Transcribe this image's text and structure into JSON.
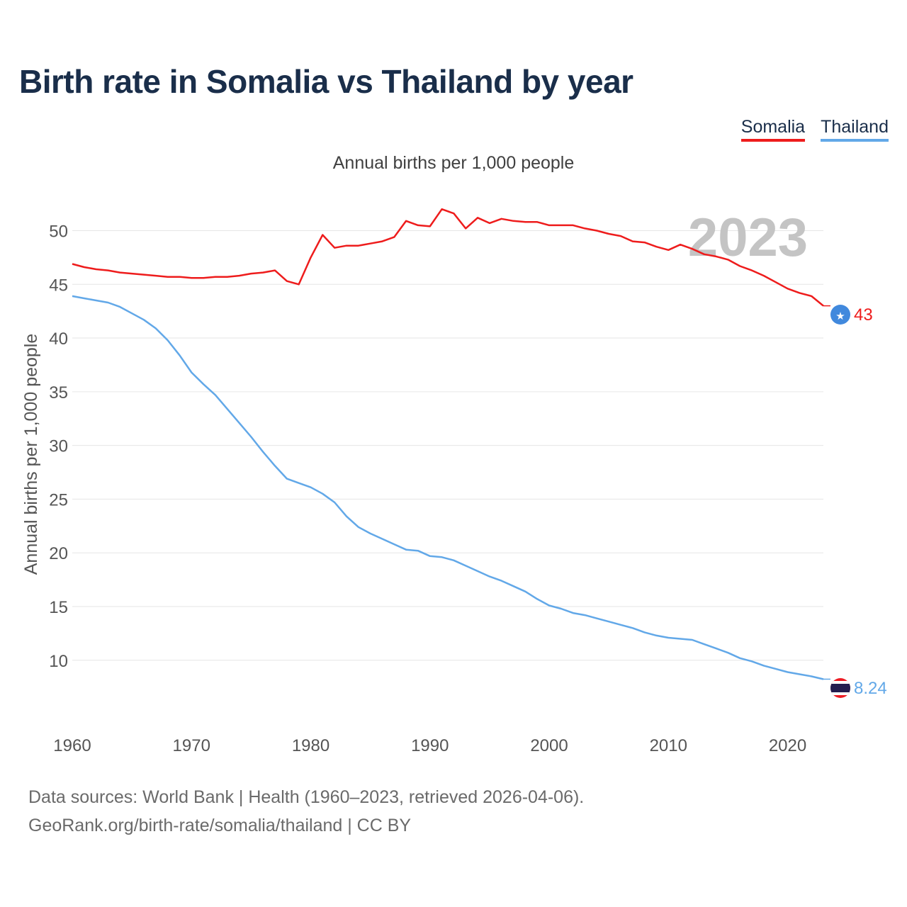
{
  "title": "Birth rate in Somalia vs Thailand by year",
  "legend": [
    {
      "name": "Somalia",
      "color": "#ee1c1c"
    },
    {
      "name": "Thailand",
      "color": "#62a8e8"
    }
  ],
  "subtitle": "Annual births per 1,000 people",
  "footer": {
    "line1": "Data sources: World Bank | Health (1960–2023, retrieved 2026-04-06).",
    "line2": "GeoRank.org/birth-rate/somalia/thailand | CC BY"
  },
  "chart_data": {
    "type": "line",
    "title": "Birth rate in Somalia vs Thailand by year",
    "ylabel": "Annual births per 1,000 people",
    "xlabel": "",
    "xlim": [
      1960,
      2023
    ],
    "ylim": [
      5.5,
      53
    ],
    "x_ticks": [
      1960,
      1970,
      1980,
      1990,
      2000,
      2010,
      2020
    ],
    "y_ticks": [
      10,
      15,
      20,
      25,
      30,
      35,
      40,
      45,
      50
    ],
    "grid": true,
    "year_watermark": "2023",
    "x": [
      1960,
      1961,
      1962,
      1963,
      1964,
      1965,
      1966,
      1967,
      1968,
      1969,
      1970,
      1971,
      1972,
      1973,
      1974,
      1975,
      1976,
      1977,
      1978,
      1979,
      1980,
      1981,
      1982,
      1983,
      1984,
      1985,
      1986,
      1987,
      1988,
      1989,
      1990,
      1991,
      1992,
      1993,
      1994,
      1995,
      1996,
      1997,
      1998,
      1999,
      2000,
      2001,
      2002,
      2003,
      2004,
      2005,
      2006,
      2007,
      2008,
      2009,
      2010,
      2011,
      2012,
      2013,
      2014,
      2015,
      2016,
      2017,
      2018,
      2019,
      2020,
      2021,
      2022,
      2023
    ],
    "series": [
      {
        "name": "Somalia",
        "color": "#ee1c1c",
        "end_label": "43",
        "values": [
          46.9,
          46.6,
          46.4,
          46.3,
          46.1,
          46.0,
          45.9,
          45.8,
          45.7,
          45.7,
          45.6,
          45.6,
          45.7,
          45.7,
          45.8,
          46.0,
          46.1,
          46.3,
          45.3,
          45.0,
          47.5,
          49.6,
          48.4,
          48.6,
          48.6,
          48.8,
          49.0,
          49.4,
          50.9,
          50.5,
          50.4,
          52.0,
          51.6,
          50.2,
          51.2,
          50.7,
          51.1,
          50.9,
          50.8,
          50.8,
          50.5,
          50.5,
          50.5,
          50.2,
          50.0,
          49.7,
          49.5,
          49.0,
          48.9,
          48.5,
          48.2,
          48.7,
          48.3,
          47.8,
          47.6,
          47.3,
          46.7,
          46.3,
          45.8,
          45.2,
          44.6,
          44.2,
          43.9,
          43.0
        ]
      },
      {
        "name": "Thailand",
        "color": "#62a8e8",
        "end_label": "8.24",
        "values": [
          43.9,
          43.7,
          43.5,
          43.3,
          42.9,
          42.3,
          41.7,
          40.9,
          39.8,
          38.4,
          36.8,
          35.7,
          34.7,
          33.4,
          32.1,
          30.8,
          29.4,
          28.1,
          26.9,
          26.5,
          26.1,
          25.5,
          24.7,
          23.4,
          22.4,
          21.8,
          21.3,
          20.8,
          20.3,
          20.2,
          19.7,
          19.6,
          19.3,
          18.8,
          18.3,
          17.8,
          17.4,
          16.9,
          16.4,
          15.7,
          15.1,
          14.8,
          14.4,
          14.2,
          13.9,
          13.6,
          13.3,
          13.0,
          12.6,
          12.3,
          12.1,
          12.0,
          11.9,
          11.5,
          11.1,
          10.7,
          10.2,
          9.9,
          9.5,
          9.2,
          8.9,
          8.7,
          8.5,
          8.24
        ]
      }
    ]
  },
  "icons": {
    "somalia_marker": "somalia-flag-icon",
    "thailand_marker": "thailand-flag-icon"
  }
}
